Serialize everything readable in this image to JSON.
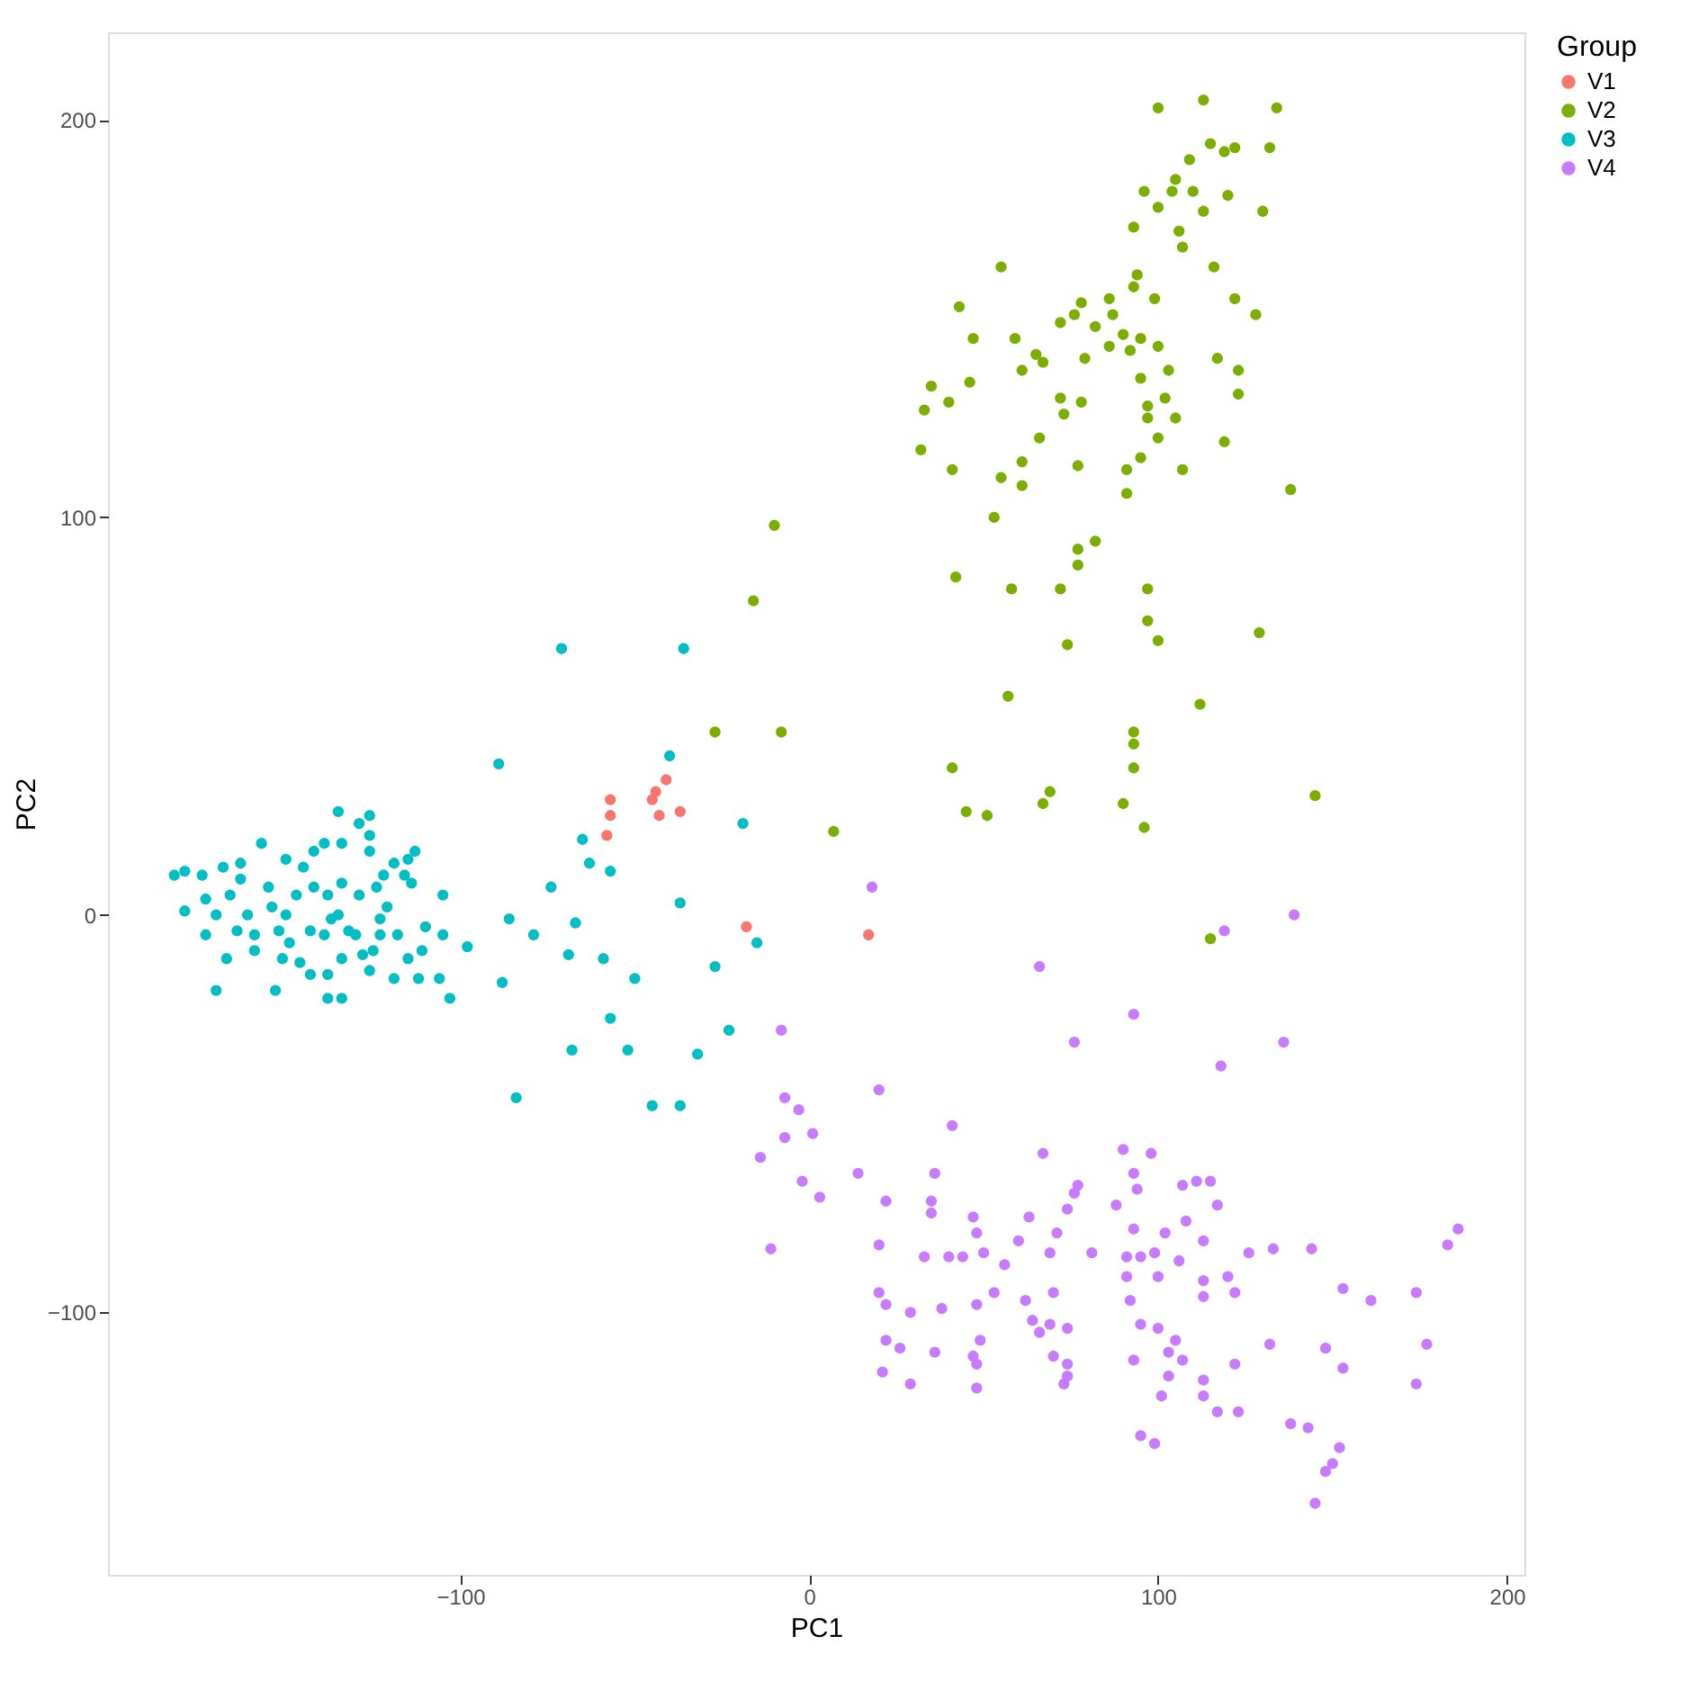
{
  "chart_data": {
    "type": "scatter",
    "xlabel": "PC1",
    "ylabel": "PC2",
    "legend_title": "Group",
    "legend": "right",
    "grid": false,
    "marker": "circle",
    "xlim": [
      -201,
      205
    ],
    "ylim": [
      -166,
      222
    ],
    "xticks": [
      -100,
      0,
      100,
      200
    ],
    "yticks": [
      -100,
      0,
      100,
      200
    ],
    "series": [
      {
        "name": "V1",
        "color": "#f8766d",
        "x": [
          -57,
          -57,
          -58,
          -41,
          -44,
          -45,
          -43,
          -37,
          -18,
          17
        ],
        "values": [
          29,
          25,
          20,
          34,
          31,
          29,
          25,
          26,
          -3,
          -5
        ]
      },
      {
        "name": "V2",
        "color": "#7cae00",
        "x": [
          100,
          113,
          134,
          115,
          119,
          122,
          132,
          109,
          105,
          104,
          110,
          96,
          120,
          100,
          113,
          130,
          93,
          106,
          107,
          55,
          116,
          94,
          43,
          78,
          86,
          99,
          93,
          122,
          128,
          47,
          59,
          76,
          72,
          82,
          87,
          90,
          95,
          65,
          67,
          79,
          86,
          92,
          100,
          117,
          61,
          95,
          103,
          123,
          35,
          46,
          40,
          33,
          72,
          78,
          123,
          97,
          102,
          97,
          105,
          66,
          73,
          100,
          119,
          32,
          41,
          61,
          77,
          95,
          107,
          55,
          61,
          91,
          91,
          138,
          53,
          77,
          82,
          77,
          42,
          58,
          72,
          97,
          97,
          74,
          100,
          129,
          57,
          112,
          93,
          93,
          41,
          93,
          69,
          67,
          45,
          51,
          90,
          96,
          145,
          -10,
          -16,
          -27,
          -8,
          7,
          115
        ],
        "values": [
          203,
          205,
          203,
          194,
          192,
          193,
          193,
          190,
          185,
          182,
          182,
          182,
          181,
          178,
          177,
          177,
          173,
          172,
          168,
          163,
          163,
          161,
          153,
          154,
          155,
          155,
          158,
          155,
          151,
          145,
          145,
          151,
          149,
          148,
          151,
          146,
          145,
          141,
          139,
          140,
          143,
          142,
          143,
          140,
          137,
          135,
          137,
          137,
          133,
          134,
          129,
          127,
          130,
          129,
          131,
          128,
          130,
          125,
          125,
          120,
          126,
          120,
          119,
          117,
          112,
          114,
          113,
          115,
          112,
          110,
          108,
          112,
          106,
          107,
          100,
          92,
          94,
          88,
          85,
          82,
          82,
          82,
          74,
          68,
          69,
          71,
          55,
          53,
          46,
          43,
          37,
          37,
          31,
          28,
          26,
          25,
          28,
          22,
          30,
          98,
          79,
          46,
          46,
          21,
          -6
        ]
      },
      {
        "name": "V3",
        "color": "#00bfc4",
        "x": [
          -182,
          -179,
          -174,
          -179,
          -173,
          -170,
          -168,
          -173,
          -170,
          -166,
          -167,
          -163,
          -163,
          -161,
          -159,
          -159,
          -157,
          -155,
          -153,
          -154,
          -151,
          -150,
          -150,
          -146,
          -147,
          -145,
          -143,
          -142,
          -142,
          -139,
          -138,
          -139,
          -135,
          -134,
          -134,
          -137,
          -138,
          -138,
          -134,
          -134,
          -135,
          -132,
          -129,
          -126,
          -129,
          -126,
          -126,
          -130,
          -128,
          -126,
          -124,
          -122,
          -123,
          -123,
          -125,
          -119,
          -115,
          -113,
          -114,
          -121,
          -118,
          -115,
          -119,
          -112,
          -110,
          -111,
          -106,
          -105,
          -105,
          -103,
          -98,
          -116,
          -143,
          -149,
          -152,
          -164,
          -89,
          -65,
          -63,
          -57,
          -74,
          -19,
          -37,
          -86,
          -79,
          -67,
          -69,
          -59,
          -88,
          -50,
          -57,
          -68,
          -52,
          -27,
          -15,
          -23,
          -32,
          -84,
          -45,
          -37,
          -71,
          -36,
          -40
        ],
        "values": [
          10,
          11,
          10,
          1,
          -5,
          -19,
          12,
          4,
          0,
          5,
          -11,
          13,
          9,
          0,
          -5,
          -9,
          18,
          7,
          -19,
          2,
          -11,
          14,
          0,
          -12,
          5,
          12,
          -4,
          7,
          16,
          18,
          5,
          -5,
          26,
          18,
          8,
          -1,
          -15,
          -21,
          -21,
          -11,
          0,
          -4,
          5,
          25,
          23,
          20,
          16,
          -5,
          -10,
          -14,
          7,
          10,
          -1,
          -5,
          -9,
          13,
          14,
          16,
          8,
          2,
          -5,
          -11,
          -16,
          -16,
          -3,
          -9,
          -16,
          -5,
          5,
          -21,
          -8,
          10,
          -15,
          -7,
          -4,
          -4,
          38,
          19,
          13,
          11,
          7,
          23,
          3,
          -1,
          -5,
          -2,
          -10,
          -11,
          -17,
          -16,
          -26,
          -34,
          -34,
          -13,
          -7,
          -29,
          -35,
          -46,
          -48,
          -48,
          67,
          67,
          40
        ]
      },
      {
        "name": "V4",
        "color": "#c77cff",
        "x": [
          18,
          119,
          139,
          66,
          93,
          76,
          136,
          118,
          -8,
          20,
          -7,
          -3,
          1,
          -7,
          -14,
          -2,
          3,
          -11,
          14,
          41,
          36,
          22,
          67,
          90,
          98,
          35,
          35,
          47,
          63,
          77,
          76,
          74,
          88,
          93,
          94,
          107,
          111,
          115,
          117,
          93,
          102,
          108,
          113,
          48,
          60,
          71,
          81,
          69,
          20,
          33,
          40,
          50,
          56,
          44,
          91,
          95,
          99,
          91,
          100,
          106,
          126,
          133,
          144,
          183,
          120,
          122,
          113,
          113,
          153,
          161,
          174,
          20,
          22,
          29,
          38,
          48,
          53,
          62,
          70,
          64,
          69,
          74,
          66,
          92,
          95,
          100,
          105,
          22,
          26,
          36,
          49,
          47,
          48,
          70,
          74,
          93,
          103,
          107,
          122,
          132,
          148,
          153,
          177,
          174,
          21,
          29,
          48,
          73,
          74,
          103,
          113,
          113,
          101,
          117,
          123,
          95,
          99,
          138,
          143,
          152,
          150,
          148,
          145,
          186
        ],
        "values": [
          7,
          -4,
          0,
          -13,
          -25,
          -32,
          -32,
          -38,
          -29,
          -44,
          -46,
          -49,
          -55,
          -56,
          -61,
          -67,
          -71,
          -84,
          -65,
          -53,
          -65,
          -72,
          -60,
          -59,
          -60,
          -72,
          -75,
          -76,
          -76,
          -68,
          -70,
          -74,
          -73,
          -65,
          -69,
          -68,
          -67,
          -67,
          -73,
          -79,
          -80,
          -77,
          -82,
          -80,
          -82,
          -80,
          -85,
          -85,
          -83,
          -86,
          -86,
          -85,
          -88,
          -86,
          -86,
          -86,
          -85,
          -91,
          -91,
          -87,
          -85,
          -84,
          -84,
          -83,
          -91,
          -95,
          -92,
          -96,
          -94,
          -97,
          -95,
          -95,
          -98,
          -100,
          -99,
          -98,
          -95,
          -97,
          -95,
          -102,
          -103,
          -104,
          -105,
          -97,
          -103,
          -104,
          -107,
          -107,
          -109,
          -110,
          -107,
          -111,
          -113,
          -111,
          -113,
          -112,
          -110,
          -112,
          -113,
          -108,
          -109,
          -114,
          -108,
          -118,
          -115,
          -118,
          -119,
          -118,
          -116,
          -116,
          -117,
          -121,
          -121,
          -125,
          -125,
          -131,
          -133,
          -128,
          -129,
          -134,
          -138,
          -140,
          -148,
          -79
        ]
      }
    ]
  }
}
